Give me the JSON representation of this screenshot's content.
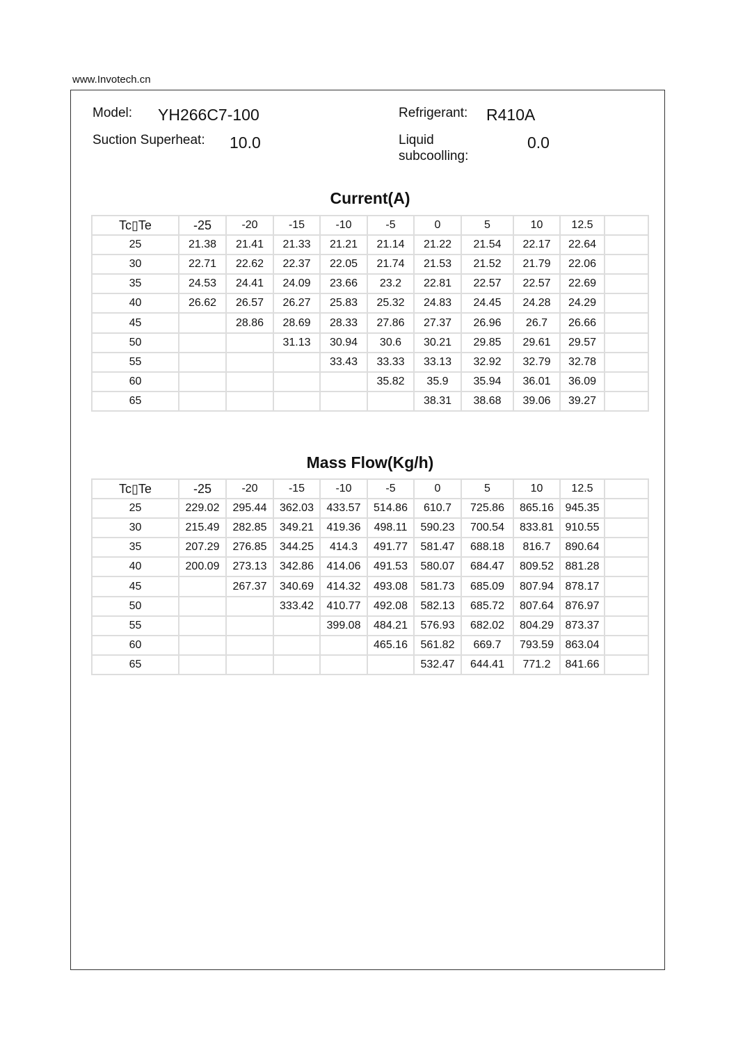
{
  "site_url": "www.Invotech.cn",
  "header": {
    "model_label": "Model:",
    "model_value": "YH266C7-100",
    "refrigerant_label": "Refrigerant:",
    "refrigerant_value": "R410A",
    "superheat_label": "Suction Superheat:",
    "superheat_value": "10.0",
    "subcooling_label_1": "Liquid",
    "subcooling_label_2": "subcoolling:",
    "subcooling_value": "0.0"
  },
  "tables": [
    {
      "title": "Current(A)",
      "columns": [
        "Tc▯Te",
        "-25",
        "-20",
        "-15",
        "-10",
        "-5",
        "0",
        "5",
        "10",
        "12.5",
        ""
      ],
      "rows": [
        [
          "25",
          "21.38",
          "21.41",
          "21.33",
          "21.21",
          "21.14",
          "21.22",
          "21.54",
          "22.17",
          "22.64",
          ""
        ],
        [
          "30",
          "22.71",
          "22.62",
          "22.37",
          "22.05",
          "21.74",
          "21.53",
          "21.52",
          "21.79",
          "22.06",
          ""
        ],
        [
          "35",
          "24.53",
          "24.41",
          "24.09",
          "23.66",
          "23.2",
          "22.81",
          "22.57",
          "22.57",
          "22.69",
          ""
        ],
        [
          "40",
          "26.62",
          "26.57",
          "26.27",
          "25.83",
          "25.32",
          "24.83",
          "24.45",
          "24.28",
          "24.29",
          ""
        ],
        [
          "45",
          "",
          "28.86",
          "28.69",
          "28.33",
          "27.86",
          "27.37",
          "26.96",
          "26.7",
          "26.66",
          ""
        ],
        [
          "50",
          "",
          "",
          "31.13",
          "30.94",
          "30.6",
          "30.21",
          "29.85",
          "29.61",
          "29.57",
          ""
        ],
        [
          "55",
          "",
          "",
          "",
          "33.43",
          "33.33",
          "33.13",
          "32.92",
          "32.79",
          "32.78",
          ""
        ],
        [
          "60",
          "",
          "",
          "",
          "",
          "35.82",
          "35.9",
          "35.94",
          "36.01",
          "36.09",
          ""
        ],
        [
          "65",
          "",
          "",
          "",
          "",
          "",
          "38.31",
          "38.68",
          "39.06",
          "39.27",
          ""
        ]
      ]
    },
    {
      "title": "Mass Flow(Kg/h)",
      "columns": [
        "Tc▯Te",
        "-25",
        "-20",
        "-15",
        "-10",
        "-5",
        "0",
        "5",
        "10",
        "12.5",
        ""
      ],
      "rows": [
        [
          "25",
          "229.02",
          "295.44",
          "362.03",
          "433.57",
          "514.86",
          "610.7",
          "725.86",
          "865.16",
          "945.35",
          ""
        ],
        [
          "30",
          "215.49",
          "282.85",
          "349.21",
          "419.36",
          "498.11",
          "590.23",
          "700.54",
          "833.81",
          "910.55",
          ""
        ],
        [
          "35",
          "207.29",
          "276.85",
          "344.25",
          "414.3",
          "491.77",
          "581.47",
          "688.18",
          "816.7",
          "890.64",
          ""
        ],
        [
          "40",
          "200.09",
          "273.13",
          "342.86",
          "414.06",
          "491.53",
          "580.07",
          "684.47",
          "809.52",
          "881.28",
          ""
        ],
        [
          "45",
          "",
          "267.37",
          "340.69",
          "414.32",
          "493.08",
          "581.73",
          "685.09",
          "807.94",
          "878.17",
          ""
        ],
        [
          "50",
          "",
          "",
          "333.42",
          "410.77",
          "492.08",
          "582.13",
          "685.72",
          "807.64",
          "876.97",
          ""
        ],
        [
          "55",
          "",
          "",
          "",
          "399.08",
          "484.21",
          "576.93",
          "682.02",
          "804.29",
          "873.37",
          ""
        ],
        [
          "60",
          "",
          "",
          "",
          "",
          "465.16",
          "561.82",
          "669.7",
          "793.59",
          "863.04",
          ""
        ],
        [
          "65",
          "",
          "",
          "",
          "",
          "",
          "532.47",
          "644.41",
          "771.2",
          "841.66",
          ""
        ]
      ]
    }
  ]
}
